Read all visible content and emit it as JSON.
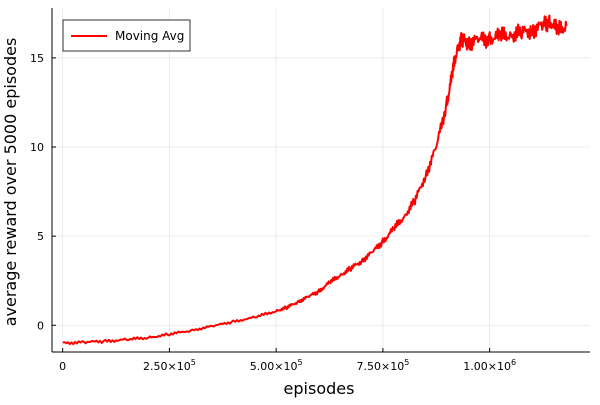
{
  "chart_data": {
    "type": "line",
    "title": "",
    "xlabel": "episodes",
    "ylabel": "average reward over 5000 episodes",
    "xlim": [
      -25000,
      1235000
    ],
    "ylim": [
      -1.5,
      17.8
    ],
    "grid": true,
    "legend_position": "top-left",
    "x_ticks": [
      {
        "value": 0,
        "label": "0",
        "exp": ""
      },
      {
        "value": 250000,
        "label": "2.50×10",
        "exp": "5"
      },
      {
        "value": 500000,
        "label": "5.00×10",
        "exp": "5"
      },
      {
        "value": 750000,
        "label": "7.50×10",
        "exp": "5"
      },
      {
        "value": 1000000,
        "label": "1.00×10",
        "exp": "6"
      }
    ],
    "y_ticks": [
      {
        "value": 0,
        "label": "0"
      },
      {
        "value": 5,
        "label": "5"
      },
      {
        "value": 10,
        "label": "10"
      },
      {
        "value": 15,
        "label": "15"
      }
    ],
    "series": [
      {
        "name": "Moving Avg",
        "color": "#ff0000",
        "x": [
          0,
          50000,
          100000,
          150000,
          200000,
          250000,
          300000,
          350000,
          400000,
          450000,
          500000,
          525000,
          550000,
          575000,
          600000,
          625000,
          650000,
          675000,
          700000,
          725000,
          750000,
          775000,
          800000,
          825000,
          850000,
          875000,
          900000,
          912000,
          925000,
          937000,
          950000,
          975000,
          1000000,
          1025000,
          1050000,
          1075000,
          1100000,
          1125000,
          1140000,
          1160000,
          1180000
        ],
        "y": [
          -1.0,
          -0.95,
          -0.9,
          -0.8,
          -0.7,
          -0.5,
          -0.3,
          -0.05,
          0.2,
          0.45,
          0.8,
          1.0,
          1.3,
          1.6,
          1.9,
          2.4,
          2.8,
          3.2,
          3.6,
          4.1,
          4.7,
          5.4,
          6.1,
          7.0,
          8.4,
          10.0,
          12.5,
          14.0,
          15.7,
          16.0,
          15.9,
          16.0,
          16.1,
          16.2,
          16.3,
          16.4,
          16.6,
          16.8,
          17.1,
          16.5,
          16.8
        ]
      }
    ]
  }
}
